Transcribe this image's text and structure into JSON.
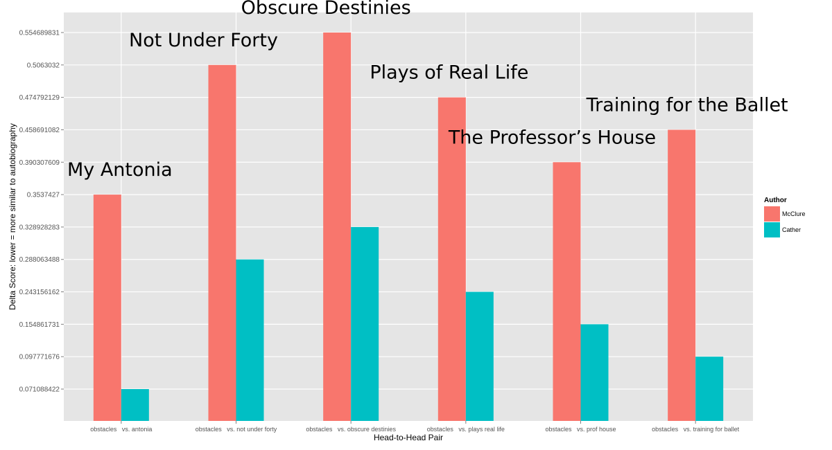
{
  "chart_data": {
    "type": "bar",
    "xlabel": "Head-to-Head Pair",
    "ylabel": "Delta Score: lower = more similar to autobiography",
    "categories": [
      "obstacles   vs. antonia",
      "obstacles   vs. not under forty",
      "obstacles   vs. obscure destinies",
      "obstacles   vs. plays real life",
      "obstacles   vs. prof house",
      "obstacles   vs. training for ballet"
    ],
    "y_ticks": [
      "0.071088422",
      "0.097771676",
      "0.154861731",
      "0.243156162",
      "0.288063488",
      "0.328928283",
      "0.3537427",
      "0.390307609",
      "0.458691082",
      "0.474792129",
      "0.5063032",
      "0.554689831"
    ],
    "y_scale": "categorical (ordered tick labels, evenly spaced)",
    "series": [
      {
        "name": "McClure",
        "color": "#F8766D",
        "values": [
          0.3537427,
          0.5063032,
          0.554689831,
          0.474792129,
          0.390307609,
          0.458691082
        ]
      },
      {
        "name": "Cather",
        "color": "#00BFC4",
        "values": [
          0.071088422,
          0.288063488,
          0.328928283,
          0.243156162,
          0.154861731,
          0.097771676
        ]
      }
    ],
    "annotations": [
      "My Antonia",
      "Not Under Forty",
      "Obscure Destinies",
      "Plays of Real Life",
      "The Professor’s House",
      "Training for the Ballet"
    ],
    "legend": {
      "title": "Author",
      "placement": "right"
    },
    "grid": true,
    "panel_color": "#E5E5E5"
  }
}
